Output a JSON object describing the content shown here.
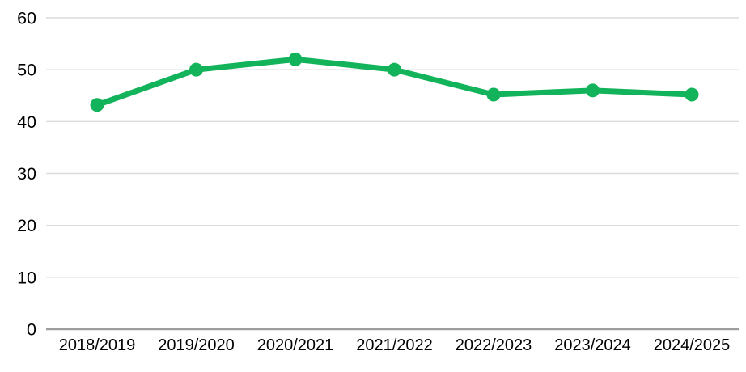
{
  "chart_data": {
    "type": "line",
    "title": "",
    "xlabel": "",
    "ylabel": "",
    "categories": [
      "2018/2019",
      "2019/2020",
      "2020/2021",
      "2021/2022",
      "2022/2023",
      "2023/2024",
      "2024/2025"
    ],
    "values": [
      43.2,
      50,
      52,
      50,
      45.2,
      46,
      45.2
    ],
    "ylim": [
      0,
      60
    ],
    "yticks": [
      0,
      10,
      20,
      30,
      40,
      50,
      60
    ],
    "grid": "horizontal",
    "legend": "none",
    "marker": "circle"
  },
  "colors": {
    "line": "#12b35a",
    "marker": "#12b35a",
    "gridline": "#dcdcdc",
    "axis_line": "#9e9e9e",
    "text": "#000000",
    "background": "#ffffff"
  }
}
